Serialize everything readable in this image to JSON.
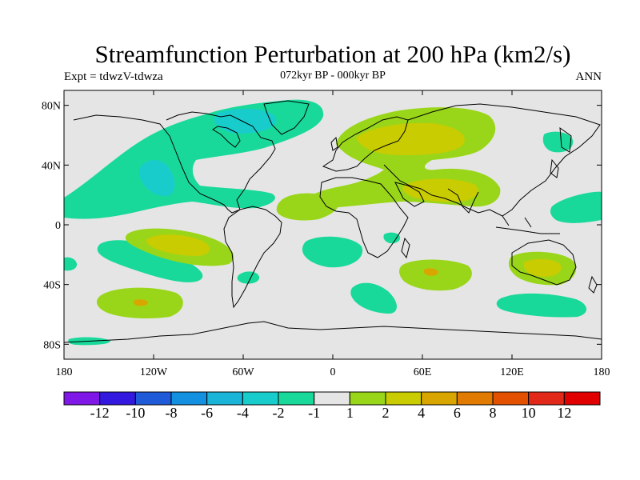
{
  "header": {
    "title": "Streamfunction Perturbation at 200 hPa (km2/s)",
    "left_subtitle": "Expt = tdwzV-tdwza",
    "center_subtitle": "072kyr BP - 000kyr BP",
    "right_subtitle": "ANN"
  },
  "map": {
    "projection": "cylindrical-equidistant",
    "lon_range": [
      -180,
      180
    ],
    "lat_range": [
      -90,
      90
    ],
    "lat_ticks": [
      {
        "value": 80,
        "label": "80N"
      },
      {
        "value": 40,
        "label": "40N"
      },
      {
        "value": 0,
        "label": "0"
      },
      {
        "value": -40,
        "label": "40S"
      },
      {
        "value": -80,
        "label": "80S"
      }
    ],
    "lon_ticks": [
      {
        "value": -180,
        "label": "180"
      },
      {
        "value": -120,
        "label": "120W"
      },
      {
        "value": -60,
        "label": "60W"
      },
      {
        "value": 0,
        "label": "0"
      },
      {
        "value": 60,
        "label": "60E"
      },
      {
        "value": 120,
        "label": "120E"
      },
      {
        "value": 180,
        "label": "180"
      }
    ],
    "background_color": "#e5e5e5"
  },
  "chart_data": {
    "type": "heatmap",
    "title": "Streamfunction Perturbation at 200 hPa (km2/s)",
    "units": "km2/s",
    "levels": [
      -12,
      -10,
      -8,
      -6,
      -4,
      -2,
      -1,
      1,
      2,
      4,
      6,
      8,
      10,
      12
    ],
    "level_labels": [
      "-12",
      "-10",
      "-8",
      "-6",
      "-4",
      "-2",
      "-1",
      "1",
      "2",
      "4",
      "6",
      "8",
      "10",
      "12"
    ],
    "colors": [
      "#7f18e6",
      "#3318e0",
      "#1f5ad8",
      "#1490e0",
      "#19b4d8",
      "#19cccc",
      "#19d99a",
      "#e5e5e5",
      "#99d619",
      "#c8cc00",
      "#d9a600",
      "#e07a00",
      "#e25000",
      "#e22818",
      "#e00000"
    ],
    "features": [
      {
        "name": "North Atlantic / Canada negative",
        "lon": -65,
        "lat": 55,
        "value": -2
      },
      {
        "name": "Hudson Bay negative core",
        "lon": -80,
        "lat": 65,
        "value": -4
      },
      {
        "name": "Eastern Pacific negative core",
        "lon": -115,
        "lat": 35,
        "value": -4
      },
      {
        "name": "Tropical Pacific / Atlantic negative band",
        "lon": -110,
        "lat": 20,
        "value": -2
      },
      {
        "name": "Eurasia positive",
        "lon": 70,
        "lat": 60,
        "value": 4
      },
      {
        "name": "South Asia positive",
        "lon": 70,
        "lat": 25,
        "value": 4
      },
      {
        "name": "Tropical Atlantic positive",
        "lon": -10,
        "lat": 10,
        "value": 2
      },
      {
        "name": "Southeast Pacific positive",
        "lon": -100,
        "lat": -15,
        "value": 4
      },
      {
        "name": "Southeast Pacific negative",
        "lon": -110,
        "lat": -25,
        "value": -2
      },
      {
        "name": "Southern Indian Ocean positive",
        "lon": 65,
        "lat": -30,
        "value": 4
      },
      {
        "name": "Australia positive",
        "lon": 140,
        "lat": -30,
        "value": 4
      },
      {
        "name": "South Pacific positive",
        "lon": -130,
        "lat": -53,
        "value": 4
      },
      {
        "name": "Southern Ocean negative",
        "lon": 40,
        "lat": -55,
        "value": -2
      },
      {
        "name": "Tasman negative",
        "lon": 145,
        "lat": -55,
        "value": -2
      },
      {
        "name": "West Pacific negative",
        "lon": 170,
        "lat": 10,
        "value": -2
      },
      {
        "name": "Kamchatka negative",
        "lon": 160,
        "lat": 55,
        "value": -2
      }
    ]
  }
}
